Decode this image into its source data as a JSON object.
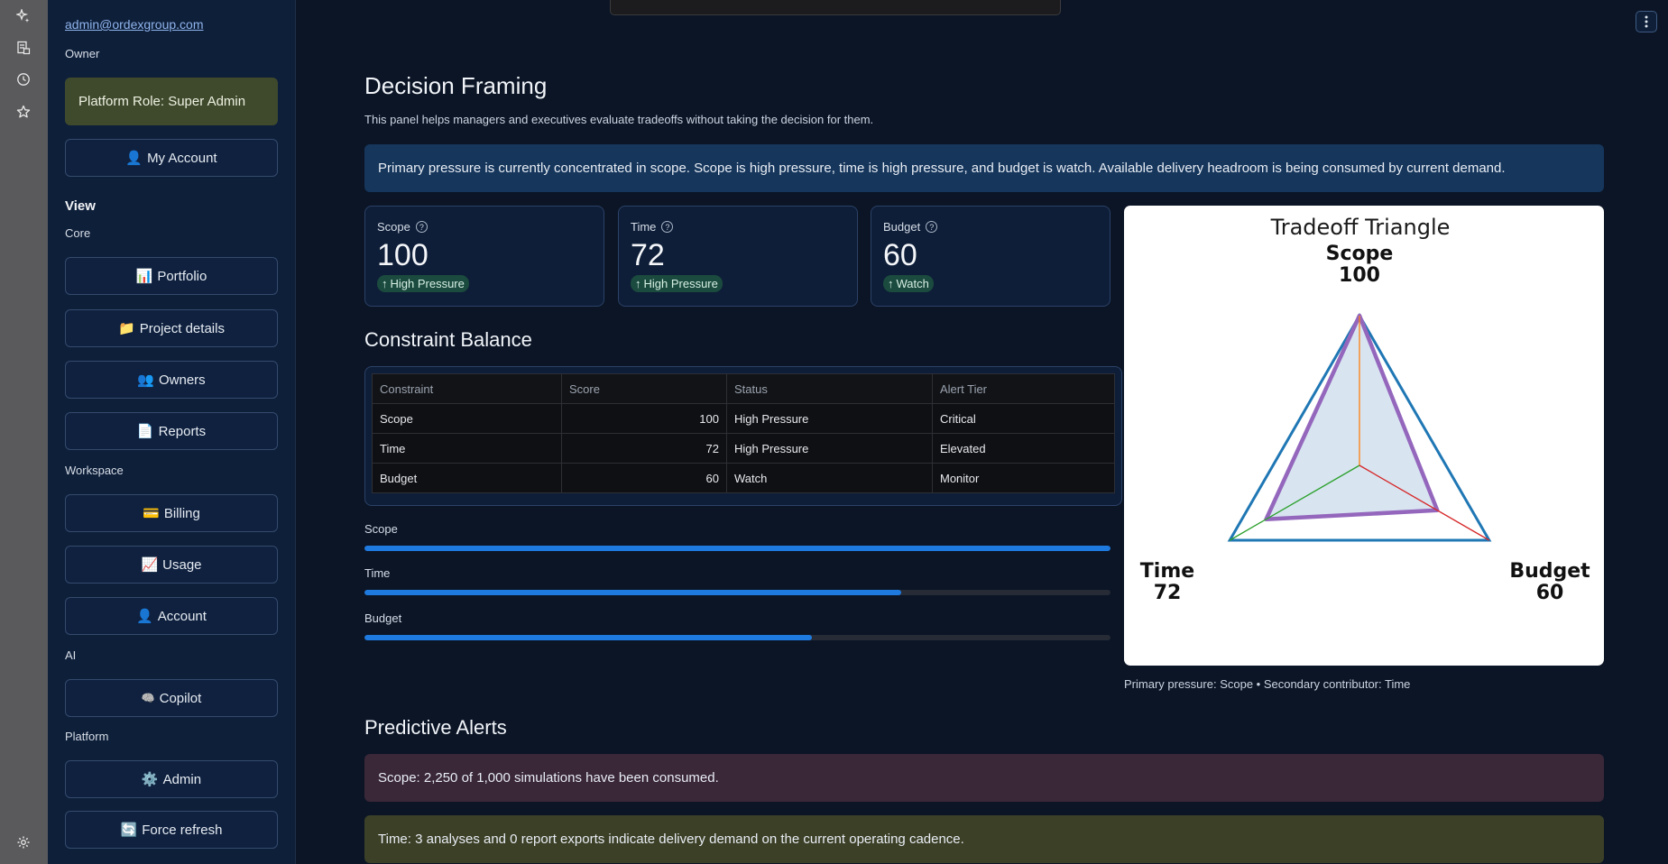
{
  "sidebar": {
    "email": "admin@ordexgroup.com",
    "role": "Owner",
    "platform_role": "Platform Role: Super Admin",
    "my_account": {
      "icon": "👤",
      "label": "My Account"
    },
    "view_heading": "View",
    "groups": {
      "core": "Core",
      "workspace": "Workspace",
      "ai": "AI",
      "platform": "Platform"
    },
    "core_items": [
      {
        "icon": "📊",
        "label": "Portfolio"
      },
      {
        "icon": "📁",
        "label": "Project details"
      },
      {
        "icon": "👥",
        "label": "Owners"
      },
      {
        "icon": "📄",
        "label": "Reports"
      }
    ],
    "workspace_items": [
      {
        "icon": "💳",
        "label": "Billing"
      },
      {
        "icon": "📈",
        "label": "Usage"
      },
      {
        "icon": "👤",
        "label": "Account"
      }
    ],
    "ai_items": [
      {
        "icon": "🧠",
        "label": "Copilot"
      }
    ],
    "platform_items": [
      {
        "icon": "⚙️",
        "label": "Admin"
      },
      {
        "icon": "🔄",
        "label": "Force refresh"
      }
    ]
  },
  "rail_icons": [
    "sparkle-icon",
    "document-icon",
    "history-icon",
    "star-icon",
    "settings-icon"
  ],
  "decision": {
    "title": "Decision Framing",
    "description": "This panel helps managers and executives evaluate tradeoffs without taking the decision for them.",
    "banner": "Primary pressure is currently concentrated in scope. Scope is high pressure, time is high pressure, and budget is watch. Available delivery headroom is being consumed by current demand."
  },
  "metrics": [
    {
      "label": "Scope",
      "value": "100",
      "badge": "High Pressure"
    },
    {
      "label": "Time",
      "value": "72",
      "badge": "High Pressure"
    },
    {
      "label": "Budget",
      "value": "60",
      "badge": "Watch"
    }
  ],
  "balance": {
    "title": "Constraint Balance",
    "columns": [
      "Constraint",
      "Score",
      "Status",
      "Alert Tier"
    ],
    "rows": [
      [
        "Scope",
        "100",
        "High Pressure",
        "Critical"
      ],
      [
        "Time",
        "72",
        "High Pressure",
        "Elevated"
      ],
      [
        "Budget",
        "60",
        "Watch",
        "Monitor"
      ]
    ],
    "bars": [
      {
        "label": "Scope",
        "value": 100
      },
      {
        "label": "Time",
        "value": 72
      },
      {
        "label": "Budget",
        "value": 60
      }
    ]
  },
  "chart_data": {
    "type": "radar",
    "title": "Tradeoff Triangle",
    "axes": [
      "Scope",
      "Time",
      "Budget"
    ],
    "values": [
      100,
      72,
      60
    ],
    "max": 100,
    "vertex_labels": [
      {
        "name": "Scope",
        "value": "100"
      },
      {
        "name": "Time",
        "value": "72"
      },
      {
        "name": "Budget",
        "value": "60"
      }
    ],
    "colors": {
      "outer": "#1f77b4",
      "inner": "#9467bd",
      "fill": "#d6e4f0",
      "scope_axis": "#ff7f0e",
      "time_axis": "#2ca02c",
      "budget_axis": "#d62728"
    }
  },
  "chart_caption": "Primary pressure: Scope • Secondary contributor: Time",
  "alerts": {
    "title": "Predictive Alerts",
    "items": [
      "Scope: 2,250 of 1,000 simulations have been consumed.",
      "Time: 3 analyses and 0 report exports indicate delivery demand on the current operating cadence."
    ]
  }
}
